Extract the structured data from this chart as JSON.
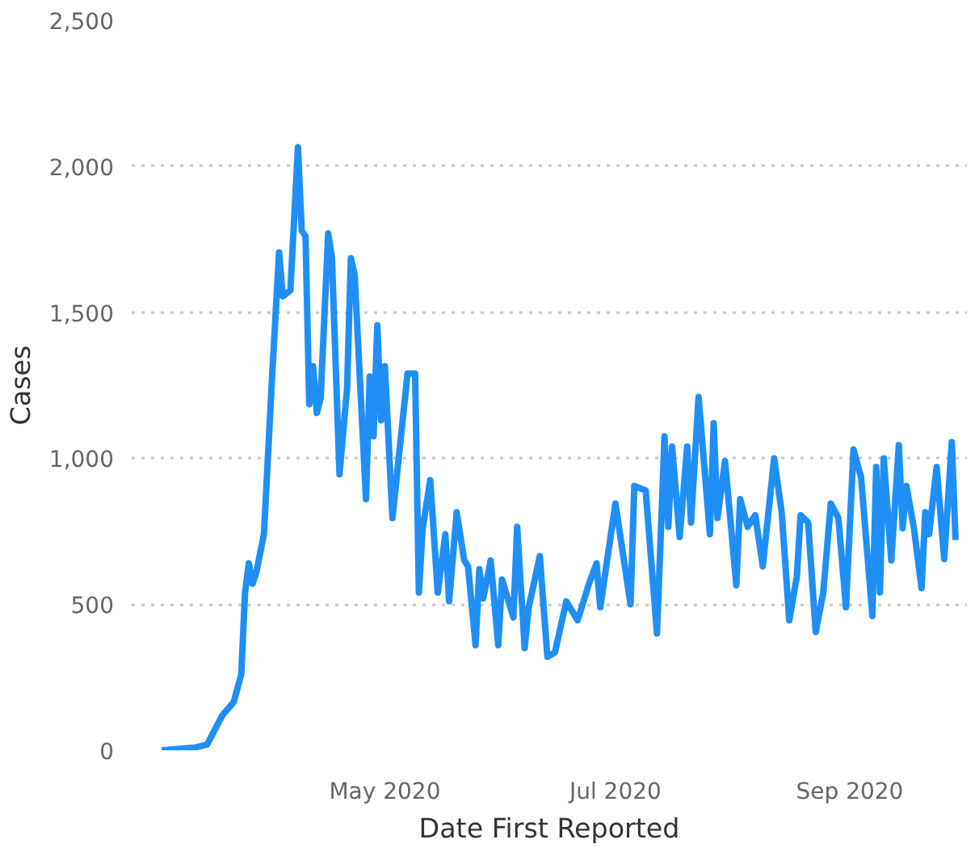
{
  "chart_data": {
    "type": "line",
    "xlabel": "Date First Reported",
    "ylabel": "Cases",
    "xlim": [
      "2020-02-24",
      "2020-10-02"
    ],
    "ylim": [
      0,
      2500
    ],
    "xticks": [
      {
        "value": "2020-05-01",
        "label": "May 2020"
      },
      {
        "value": "2020-07-01",
        "label": "Jul 2020"
      },
      {
        "value": "2020-09-01",
        "label": "Sep 2020"
      }
    ],
    "yticks": [
      {
        "value": 0,
        "label": "0"
      },
      {
        "value": 500,
        "label": "500"
      },
      {
        "value": 1000,
        "label": "1,000"
      },
      {
        "value": 1500,
        "label": "1,500"
      },
      {
        "value": 2000,
        "label": "2,000"
      },
      {
        "value": 2500,
        "label": "2,500"
      }
    ],
    "grid": "y",
    "marker": "none",
    "line_style": "solid",
    "x": [
      "2020-03-03",
      "2020-03-12",
      "2020-03-15",
      "2020-03-19",
      "2020-03-22",
      "2020-03-24",
      "2020-03-25",
      "2020-03-26",
      "2020-03-27",
      "2020-03-28",
      "2020-03-30",
      "2020-04-01",
      "2020-04-03",
      "2020-04-04",
      "2020-04-06",
      "2020-04-08",
      "2020-04-09",
      "2020-04-10",
      "2020-04-11",
      "2020-04-12",
      "2020-04-13",
      "2020-04-14",
      "2020-04-16",
      "2020-04-17",
      "2020-04-19",
      "2020-04-21",
      "2020-04-22",
      "2020-04-23",
      "2020-04-26",
      "2020-04-27",
      "2020-04-28",
      "2020-04-29",
      "2020-04-30",
      "2020-05-01",
      "2020-05-03",
      "2020-05-07",
      "2020-05-09",
      "2020-05-10",
      "2020-05-11",
      "2020-05-13",
      "2020-05-15",
      "2020-05-17",
      "2020-05-18",
      "2020-05-20",
      "2020-05-22",
      "2020-05-23",
      "2020-05-25",
      "2020-05-26",
      "2020-05-27",
      "2020-05-29",
      "2020-05-31",
      "2020-06-01",
      "2020-06-04",
      "2020-06-05",
      "2020-06-07",
      "2020-06-08",
      "2020-06-11",
      "2020-06-13",
      "2020-06-15",
      "2020-06-18",
      "2020-06-21",
      "2020-06-24",
      "2020-06-26",
      "2020-06-27",
      "2020-07-01",
      "2020-07-05",
      "2020-07-06",
      "2020-07-09",
      "2020-07-12",
      "2020-07-14",
      "2020-07-15",
      "2020-07-16",
      "2020-07-18",
      "2020-07-20",
      "2020-07-21",
      "2020-07-23",
      "2020-07-26",
      "2020-07-27",
      "2020-07-28",
      "2020-07-30",
      "2020-08-02",
      "2020-08-03",
      "2020-08-05",
      "2020-08-07",
      "2020-08-09",
      "2020-08-12",
      "2020-08-14",
      "2020-08-16",
      "2020-08-18",
      "2020-08-19",
      "2020-08-21",
      "2020-08-23",
      "2020-08-25",
      "2020-08-27",
      "2020-08-29",
      "2020-08-31",
      "2020-09-02",
      "2020-09-04",
      "2020-09-07",
      "2020-09-08",
      "2020-09-09",
      "2020-09-10",
      "2020-09-12",
      "2020-09-14",
      "2020-09-15",
      "2020-09-16",
      "2020-09-18",
      "2020-09-20",
      "2020-09-21",
      "2020-09-22",
      "2020-09-24",
      "2020-09-26",
      "2020-09-28",
      "2020-09-29"
    ],
    "series": [
      {
        "color": "#1f8ff5",
        "values": [
          0,
          10,
          20,
          120,
          165,
          260,
          540,
          640,
          570,
          610,
          740,
          1240,
          1705,
          1555,
          1575,
          2065,
          1780,
          1760,
          1185,
          1315,
          1155,
          1205,
          1770,
          1685,
          945,
          1240,
          1685,
          1630,
          860,
          1280,
          1075,
          1455,
          1130,
          1315,
          795,
          1290,
          1290,
          540,
          760,
          925,
          540,
          740,
          510,
          815,
          650,
          630,
          360,
          620,
          520,
          650,
          360,
          585,
          455,
          765,
          350,
          485,
          665,
          320,
          335,
          510,
          445,
          570,
          640,
          490,
          845,
          500,
          905,
          890,
          400,
          1075,
          765,
          1040,
          730,
          1040,
          780,
          1210,
          740,
          1120,
          795,
          990,
          565,
          860,
          765,
          805,
          630,
          1000,
          815,
          445,
          595,
          805,
          780,
          405,
          540,
          845,
          795,
          490,
          1030,
          935,
          460,
          970,
          540,
          1000,
          650,
          1045,
          760,
          905,
          760,
          555,
          815,
          740,
          970,
          655,
          1055,
          720
        ]
      }
    ]
  }
}
